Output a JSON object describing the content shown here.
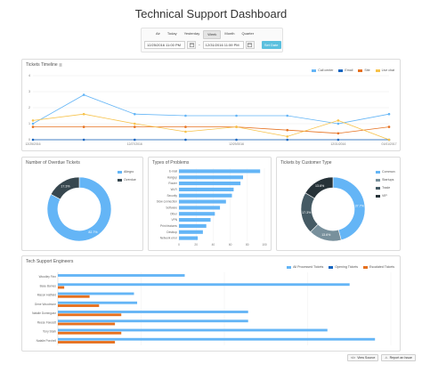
{
  "title": "Technical Support Dashboard",
  "filter": {
    "tabs": [
      "Air",
      "Today",
      "Yesterday",
      "Week",
      "Month",
      "Quarter"
    ],
    "active_tab": "Week",
    "from_value": "12/25/2016 11:00 PM",
    "to_value": "12/31/2016 11:59 PM",
    "set_label": "Set Date"
  },
  "colors": {
    "call_center": "#64b5f6",
    "email": "#1565c0",
    "site": "#e6711f",
    "live_chat": "#f7c24a",
    "panel_border": "#dcdcdc",
    "ring_light": "#64b5f6",
    "ring_dark": "#37474f",
    "ring_mid": "#455a64",
    "bar_blue": "#64b5f6",
    "bar_orange": "#e6711f"
  },
  "timeline": {
    "title": "Tickets Timeline",
    "legend": [
      "Call center",
      "Email",
      "Site",
      "Live chat"
    ],
    "chart_data": {
      "type": "line",
      "x": [
        "12/25/2016",
        "12/26/2016",
        "12/27/2016",
        "12/28/2016",
        "12/29/2016",
        "12/30/2016",
        "12/31/2016",
        "01/01/2017"
      ],
      "xtick_labels": [
        "12/25/2016",
        "12/27/2016",
        "12/29/2016",
        "12/31/2016",
        "01/01/2017"
      ],
      "ylim": [
        0,
        4
      ],
      "yticks": [
        "0",
        "1",
        "2",
        "3",
        "4"
      ],
      "series": [
        {
          "name": "Call center",
          "values": [
            1,
            2.8,
            1.6,
            1.5,
            1.5,
            1.5,
            1,
            1.6
          ]
        },
        {
          "name": "Email",
          "values": [
            0,
            0,
            0,
            0,
            0,
            0,
            0,
            0
          ]
        },
        {
          "name": "Site",
          "values": [
            0.8,
            0.8,
            0.8,
            0.8,
            0.8,
            0.6,
            0.4,
            0.8
          ]
        },
        {
          "name": "Live chat",
          "values": [
            1.2,
            1.6,
            1,
            0.5,
            0.8,
            0.2,
            1.2,
            0
          ]
        }
      ]
    }
  },
  "overdue": {
    "title": "Number of Overdue Tickets",
    "legend": [
      "Allegro",
      "Overdue"
    ],
    "chart_data": {
      "type": "pie",
      "categories": [
        "Allegro",
        "Overdue"
      ],
      "values": [
        82.7,
        17.3
      ],
      "labels": [
        "82.7%",
        "17.3%"
      ]
    }
  },
  "problems": {
    "title": "Types of Problems",
    "chart_data": {
      "type": "bar",
      "categories": [
        "E-mail",
        "Hangup",
        "Router",
        "Wi-Fi",
        "Security",
        "Slow connection",
        "Software",
        "Other",
        "VPN",
        "Print features",
        "Desktop",
        "Network error"
      ],
      "values": [
        95,
        75,
        72,
        64,
        62,
        55,
        48,
        42,
        37,
        32,
        28,
        22
      ],
      "xlim": [
        0,
        100
      ],
      "xticks": [
        "0",
        "20",
        "40",
        "60",
        "80",
        "100"
      ]
    }
  },
  "customer": {
    "title": "Tickets by Customer Type",
    "legend": [
      "Common",
      "Startups",
      "Trade",
      "VIP"
    ],
    "chart_data": {
      "type": "pie",
      "categories": [
        "Common",
        "Startups",
        "Trade",
        "VIP"
      ],
      "values": [
        37.7,
        13.6,
        17.3,
        13.6
      ],
      "labels": [
        "37.7%",
        "13.6%",
        "17.3%",
        "13.6%"
      ]
    }
  },
  "engineers": {
    "title": "Tech Support Engineers",
    "legend": [
      "All Processed Tickets",
      "Opening Tickets",
      "Escalated Tickets"
    ],
    "chart_data": {
      "type": "bar",
      "categories": [
        "Woodley Finn",
        "Beau Barnes",
        "Mason Hatfield",
        "Gene Woodmore",
        "Natalie Dominguez",
        "Reese Fawcett",
        "Tony Stark",
        "Natalie Porchell"
      ],
      "series": [
        {
          "name": "All Processed Tickets",
          "values": [
            40,
            92,
            24,
            25,
            60,
            60,
            85,
            100
          ]
        },
        {
          "name": "Escalated Tickets",
          "values": [
            0,
            2,
            10,
            13,
            20,
            18,
            20,
            18
          ]
        }
      ],
      "xlim": [
        0,
        105
      ]
    }
  },
  "buttons": {
    "view_source": "View Source",
    "report_issue": "Report an Issue"
  }
}
